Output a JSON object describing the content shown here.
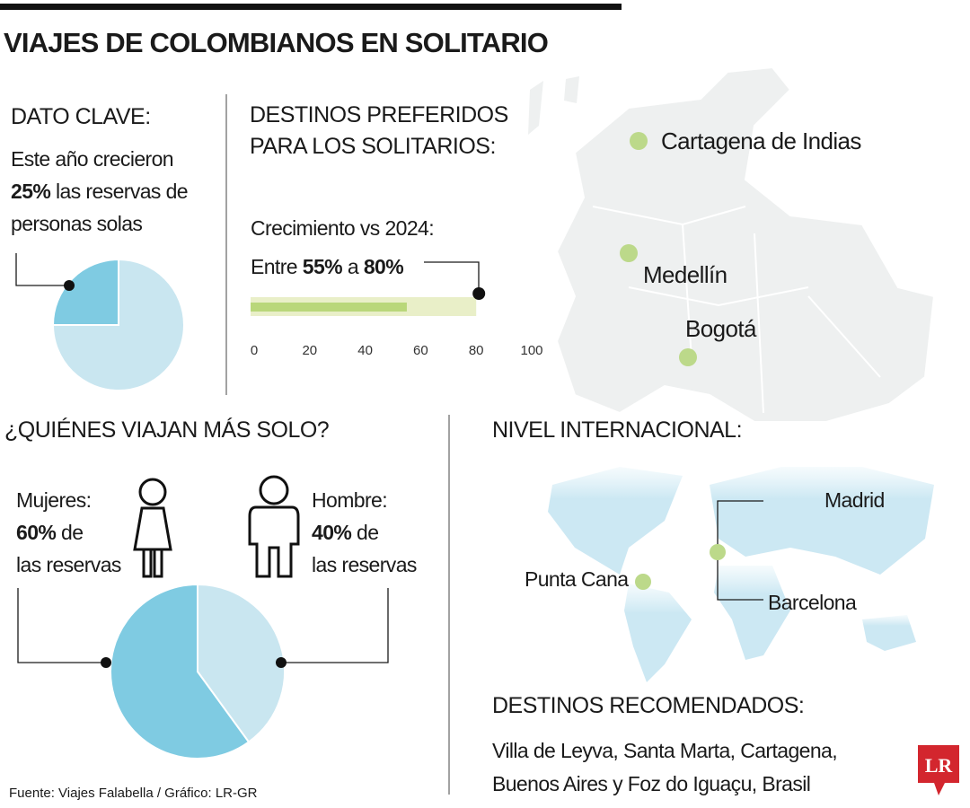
{
  "title": "VIAJES DE COLOMBIANOS EN SOLITARIO",
  "key_fact": {
    "heading": "DATO CLAVE:",
    "lead": "Este año crecieron",
    "highlight": "25%",
    "rest": [
      "las reservas de",
      "personas solas"
    ]
  },
  "destinations": {
    "heading": [
      "DESTINOS PREFERIDOS",
      "PARA LOS SOLITARIOS:"
    ],
    "subheading": "Crecimiento vs 2024:",
    "range_prefix": "Entre",
    "range_joiner": "a"
  },
  "who": {
    "heading": "¿QUIÉNES VIAJAN MÁS SOLO?",
    "label_suffix": [
      "de",
      "de"
    ],
    "label_tail": [
      "las reservas",
      "las reservas"
    ]
  },
  "chart_data": [
    {
      "type": "pie",
      "values": [
        25,
        75
      ],
      "colors": [
        "#7fcbe2",
        "#c9e6f0"
      ]
    },
    {
      "type": "progress",
      "values": [
        55,
        80
      ],
      "value_labels": [
        "55%",
        "80%"
      ],
      "colors": [
        "#b9d77a",
        "#e9efc8"
      ],
      "xlim": [
        0,
        100
      ],
      "xticks": [
        0,
        20,
        40,
        60,
        80,
        100
      ]
    },
    {
      "type": "pie",
      "categories": [
        "Mujeres:",
        "Hombre:"
      ],
      "values": [
        60,
        40
      ],
      "value_labels": [
        "60%",
        "40%"
      ],
      "colors": [
        "#7fcbe2",
        "#c9e6f0"
      ]
    }
  ],
  "map": {
    "cities": [
      "Cartagena de Indias",
      "Medellín",
      "Bogotá"
    ]
  },
  "international": {
    "heading": "NIVEL INTERNACIONAL:",
    "cities": [
      "Madrid",
      "Punta Cana",
      "Barcelona"
    ]
  },
  "recommended": {
    "heading": "DESTINOS RECOMENDADOS:",
    "lines": [
      "Villa de Leyva, Santa Marta, Cartagena,",
      "Buenos Aires y Foz do Iguaçu, Brasil"
    ]
  },
  "source": "Fuente: Viajes Falabella / Gráfico: LR-GR",
  "logo": "LR"
}
